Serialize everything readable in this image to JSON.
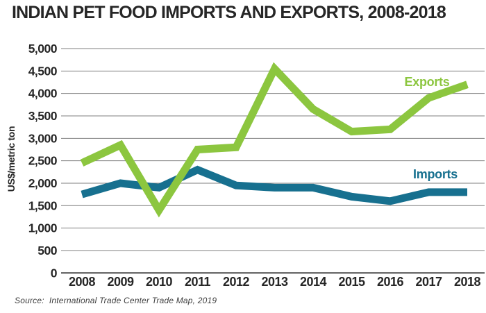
{
  "source": "Source:  International Trade Center Trade Map, 2019",
  "chart_data": {
    "type": "line",
    "title": "INDIAN PET FOOD IMPORTS AND EXPORTS, 2008-2018",
    "xlabel": "",
    "ylabel": "US$/metric ton",
    "ylim": [
      0,
      5000
    ],
    "ytick_step": 500,
    "grid": true,
    "legend_position": "inline-labels-right",
    "categories": [
      "2008",
      "2009",
      "2010",
      "2011",
      "2012",
      "2013",
      "2014",
      "2015",
      "2016",
      "2017",
      "2018"
    ],
    "series": [
      {
        "name": "Exports",
        "color": "#8CC63F",
        "values": [
          2450,
          2850,
          1400,
          2750,
          2800,
          4550,
          3650,
          3150,
          3200,
          3900,
          4200
        ]
      },
      {
        "name": "Imports",
        "color": "#17708F",
        "values": [
          1750,
          2000,
          1900,
          2300,
          1950,
          1900,
          1900,
          1700,
          1600,
          1800,
          1800
        ]
      }
    ]
  },
  "colors": {
    "grid_line": "#7f7f7f",
    "axis_line": "#4a4a4a",
    "tick_label": "#262626",
    "title": "#262626",
    "exports": "#8CC63F",
    "imports": "#17708F"
  }
}
